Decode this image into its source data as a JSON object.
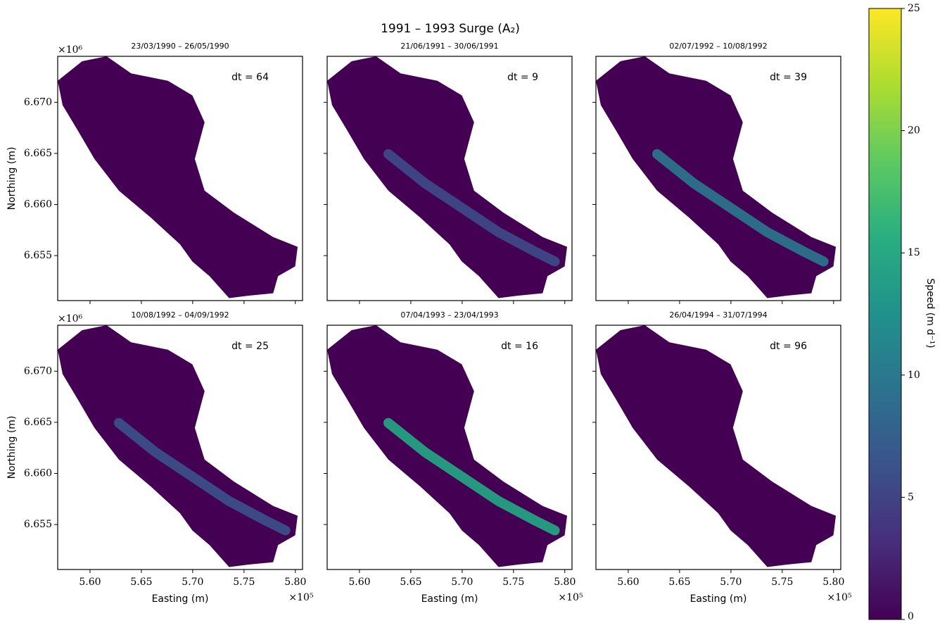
{
  "chart_data": {
    "type": "map",
    "title": "1991 – 1993 Surge (A₂)",
    "xlabel": "Easting (m)",
    "ylabel": "Northing (m)",
    "x_offset_label": "×10⁵",
    "y_offset_label": "×10⁶",
    "xlim": [
      556850,
      580700
    ],
    "ylim": [
      6650600,
      6674500
    ],
    "xticks": [
      {
        "value": 560000,
        "label": "5.60"
      },
      {
        "value": 565000,
        "label": "5.65"
      },
      {
        "value": 570000,
        "label": "5.70"
      },
      {
        "value": 575000,
        "label": "5.75"
      },
      {
        "value": 580000,
        "label": "5.80"
      }
    ],
    "yticks": [
      {
        "value": 6655000,
        "label": "6.655"
      },
      {
        "value": 6660000,
        "label": "6.660"
      },
      {
        "value": 6665000,
        "label": "6.665"
      },
      {
        "value": 6670000,
        "label": "6.670"
      }
    ],
    "panels": [
      {
        "subtitle": "23/03/1990 – 26/05/1990",
        "annotation": "dt = 64"
      },
      {
        "subtitle": "21/06/1991 – 30/06/1991",
        "annotation": "dt = 9"
      },
      {
        "subtitle": "02/07/1992 – 10/08/1992",
        "annotation": "dt = 39"
      },
      {
        "subtitle": "10/08/1992 – 04/09/1992",
        "annotation": "dt = 25"
      },
      {
        "subtitle": "07/04/1993 – 23/04/1993",
        "annotation": "dt = 16"
      },
      {
        "subtitle": "26/04/1994 – 31/07/1994",
        "annotation": "dt = 96"
      }
    ],
    "colorbar": {
      "label": "Speed (m d⁻¹)",
      "colormap": "viridis",
      "clim": [
        0,
        25
      ],
      "ticks": [
        0,
        5,
        10,
        15,
        20,
        25
      ]
    }
  }
}
